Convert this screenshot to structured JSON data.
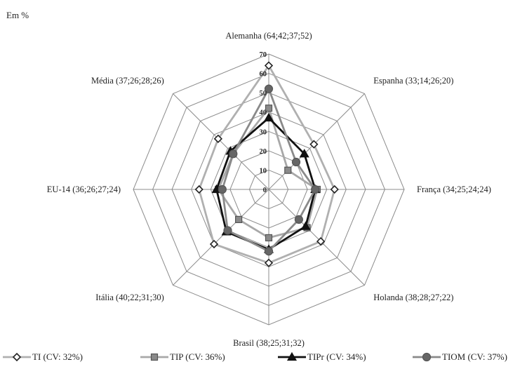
{
  "unit_label": "Em %",
  "chart_data": {
    "type": "radar",
    "axes": [
      "Alemanha (64;42;37;52)",
      "Espanha (33;14;26;20)",
      "França (34;25;24;24)",
      "Holanda (38;28;27;22)",
      "Brasil (38;25;31;32)",
      "Itália (40;22;31;30)",
      "EU-14 (36;26;27;24)",
      "Média (37;26;28;26)"
    ],
    "r_range": [
      0,
      70
    ],
    "r_ticks": [
      "0",
      "10",
      "20",
      "30",
      "40",
      "50",
      "60",
      "70"
    ],
    "grid": true,
    "legend_position": "bottom",
    "series": [
      {
        "name": "TI (CV: 32%)",
        "values": [
          64,
          33,
          34,
          38,
          38,
          40,
          36,
          37
        ],
        "color": "#b0b0b0",
        "marker": "diamond",
        "marker_fill": "#ffffff",
        "marker_stroke": "#222222"
      },
      {
        "name": "TIP (CV: 36%)",
        "values": [
          42,
          14,
          25,
          28,
          25,
          22,
          26,
          26
        ],
        "color": "#a8a8a8",
        "marker": "square",
        "marker_fill": "#8a8a8a",
        "marker_stroke": "#555555"
      },
      {
        "name": "TIPr (CV: 34%)",
        "values": [
          37,
          26,
          24,
          27,
          31,
          31,
          27,
          28
        ],
        "color": "#111111",
        "marker": "triangle",
        "marker_fill": "#111111",
        "marker_stroke": "#111111"
      },
      {
        "name": "TIOM (CV: 37%)",
        "values": [
          52,
          20,
          24,
          22,
          32,
          30,
          24,
          26
        ],
        "color": "#8a8a8a",
        "marker": "circle",
        "marker_fill": "#666666",
        "marker_stroke": "#555555"
      }
    ]
  }
}
